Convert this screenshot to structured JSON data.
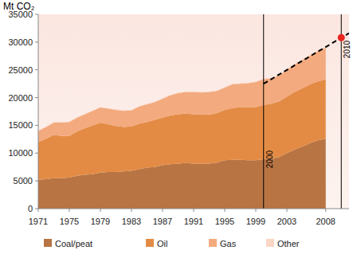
{
  "chart_data": {
    "type": "area",
    "stacked": true,
    "y_label": "Mt CO₂",
    "x": [
      1971,
      1972,
      1973,
      1974,
      1975,
      1976,
      1977,
      1978,
      1979,
      1980,
      1981,
      1982,
      1983,
      1984,
      1985,
      1986,
      1987,
      1988,
      1989,
      1990,
      1991,
      1992,
      1993,
      1994,
      1995,
      1996,
      1997,
      1998,
      1999,
      2000,
      2001,
      2002,
      2003,
      2004,
      2005,
      2006,
      2007,
      2008
    ],
    "series": [
      {
        "name": "Coal/peat",
        "color": "#b87443",
        "values": [
          5200,
          5300,
          5500,
          5500,
          5600,
          5900,
          6100,
          6200,
          6500,
          6600,
          6600,
          6700,
          6800,
          7100,
          7400,
          7500,
          7800,
          8000,
          8100,
          8200,
          8100,
          8100,
          8100,
          8300,
          8700,
          8800,
          8800,
          8700,
          8700,
          8900,
          9000,
          9300,
          10000,
          10600,
          11200,
          11800,
          12300,
          12600
        ]
      },
      {
        "name": "Oil",
        "color": "#e38b45",
        "values": [
          6800,
          7300,
          7800,
          7600,
          7500,
          8000,
          8400,
          8800,
          9000,
          8600,
          8300,
          8000,
          8000,
          8200,
          8200,
          8500,
          8600,
          8800,
          8900,
          8900,
          8900,
          8900,
          8800,
          8900,
          9100,
          9300,
          9500,
          9500,
          9600,
          9800,
          9900,
          10000,
          10200,
          10400,
          10500,
          10600,
          10600,
          10700
        ]
      },
      {
        "name": "Gas",
        "color": "#f3aa7e",
        "values": [
          2000,
          2100,
          2200,
          2400,
          2500,
          2500,
          2500,
          2600,
          2700,
          2800,
          2900,
          2900,
          2900,
          3100,
          3200,
          3200,
          3400,
          3600,
          3800,
          3900,
          4000,
          3900,
          4100,
          4000,
          4000,
          4300,
          4200,
          4400,
          4500,
          4600,
          4600,
          4700,
          4800,
          5000,
          5100,
          5200,
          5500,
          5700
        ]
      },
      {
        "name": "Other",
        "color": "#fad6c4",
        "values": [
          100,
          100,
          100,
          100,
          100,
          100,
          100,
          100,
          100,
          100,
          100,
          100,
          100,
          100,
          100,
          100,
          100,
          100,
          100,
          100,
          100,
          100,
          100,
          100,
          100,
          100,
          100,
          100,
          100,
          100,
          100,
          100,
          100,
          100,
          100,
          100,
          100,
          100
        ]
      }
    ],
    "projection": {
      "x": [
        2000,
        2011
      ],
      "values": [
        22500,
        31600
      ],
      "line_style": "dashed",
      "color": "#000000"
    },
    "point": {
      "x": 2010,
      "value": 30800,
      "color": "#e8261f"
    },
    "annotations": [
      {
        "x": 2000,
        "text": "2000"
      },
      {
        "x": 2010,
        "text": "2010"
      }
    ],
    "xlim": [
      1971,
      2011
    ],
    "xticks": [
      1971,
      1975,
      1979,
      1983,
      1987,
      1991,
      1995,
      1999,
      2003,
      2008
    ],
    "ylim": [
      0,
      35000
    ],
    "yticks": [
      0,
      5000,
      10000,
      15000,
      20000,
      25000,
      30000,
      35000
    ],
    "grid": false,
    "legend": "bottom"
  }
}
